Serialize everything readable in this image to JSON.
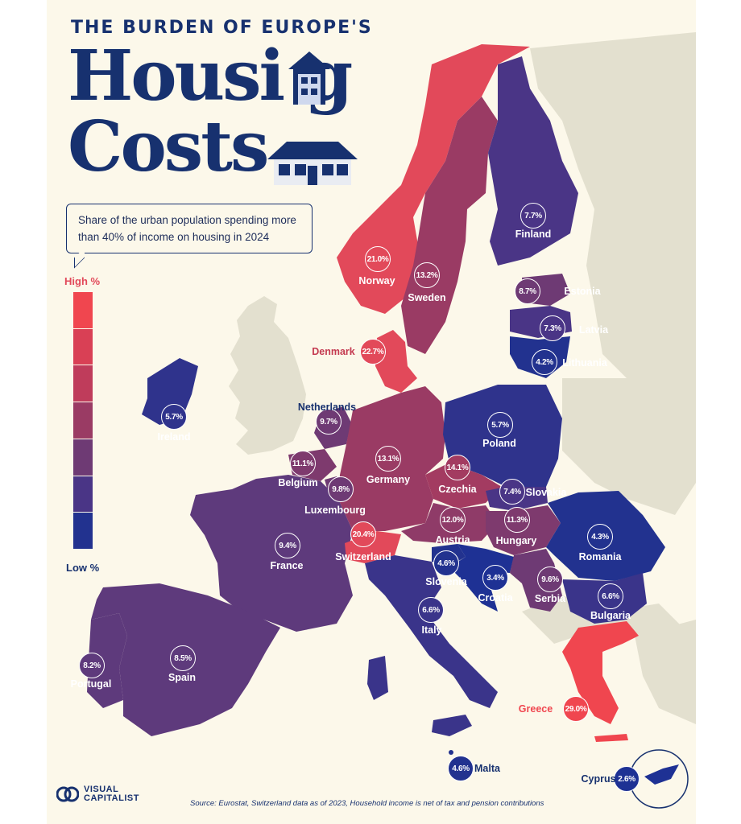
{
  "header": {
    "subtitle": "THE BURDEN OF EUROPE'S",
    "title_line1": "Housi  g",
    "title_line2": "Costs"
  },
  "description": "Share of the urban population spending more than 40% of income on housing in 2024",
  "legend": {
    "high_label": "High %",
    "low_label": "Low %",
    "colors": [
      "#f0464f",
      "#d94055",
      "#bf3c5b",
      "#9a3b64",
      "#6e3a74",
      "#4a3586",
      "#22328f"
    ]
  },
  "countries": [
    {
      "name": "Norway",
      "value": "21.0%",
      "color": "#e2495a",
      "label": "Norway"
    },
    {
      "name": "Sweden",
      "value": "13.2%",
      "color": "#9a3b64",
      "label": "Sweden"
    },
    {
      "name": "Finland",
      "value": "7.7%",
      "color": "#4a3586",
      "label": "Finland"
    },
    {
      "name": "Estonia",
      "value": "8.7%",
      "color": "#6e3a74",
      "label": "Estonia"
    },
    {
      "name": "Latvia",
      "value": "7.3%",
      "color": "#4a3586",
      "label": "Latvia"
    },
    {
      "name": "Lithuania",
      "value": "4.2%",
      "color": "#22328f",
      "label": "Lithuania"
    },
    {
      "name": "Denmark",
      "value": "22.7%",
      "color": "#e2495a",
      "label": "Denmark"
    },
    {
      "name": "Ireland",
      "value": "5.7%",
      "color": "#2f338c",
      "label": "Ireland"
    },
    {
      "name": "Netherlands",
      "value": "9.7%",
      "color": "#6e3a74",
      "label": "Netherlands"
    },
    {
      "name": "Belgium",
      "value": "11.1%",
      "color": "#7e3a6e",
      "label": "Belgium"
    },
    {
      "name": "Luxembourg",
      "value": "9.8%",
      "color": "#6e3a74",
      "label": "Luxembourg"
    },
    {
      "name": "Germany",
      "value": "13.1%",
      "color": "#9a3b64",
      "label": "Germany"
    },
    {
      "name": "Poland",
      "value": "5.7%",
      "color": "#2f338c",
      "label": "Poland"
    },
    {
      "name": "Czechia",
      "value": "14.1%",
      "color": "#a33b61",
      "label": "Czechia"
    },
    {
      "name": "Slovakia",
      "value": "7.4%",
      "color": "#4a3586",
      "label": "Slovakia"
    },
    {
      "name": "Austria",
      "value": "12.0%",
      "color": "#8f3b68",
      "label": "Austria"
    },
    {
      "name": "Hungary",
      "value": "11.3%",
      "color": "#7e3a6e",
      "label": "Hungary"
    },
    {
      "name": "Romania",
      "value": "4.3%",
      "color": "#22328f",
      "label": "Romania"
    },
    {
      "name": "France",
      "value": "9.4%",
      "color": "#5e3a7c",
      "label": "France"
    },
    {
      "name": "Switzerland",
      "value": "20.4%",
      "color": "#e2495a",
      "label": "Switzerland"
    },
    {
      "name": "Slovenia",
      "value": "4.6%",
      "color": "#22328f",
      "label": "Slovenia"
    },
    {
      "name": "Croatia",
      "value": "3.4%",
      "color": "#1e3194",
      "label": "Croatia"
    },
    {
      "name": "Serbia",
      "value": "9.6%",
      "color": "#6e3a74",
      "label": "Serbia"
    },
    {
      "name": "Bulgaria",
      "value": "6.6%",
      "color": "#3a348a",
      "label": "Bulgaria"
    },
    {
      "name": "Italy",
      "value": "6.6%",
      "color": "#3a348a",
      "label": "Italy"
    },
    {
      "name": "Portugal",
      "value": "8.2%",
      "color": "#5e3a7c",
      "label": "Portugal"
    },
    {
      "name": "Spain",
      "value": "8.5%",
      "color": "#5e3a7c",
      "label": "Spain"
    },
    {
      "name": "Greece",
      "value": "29.0%",
      "color": "#f0464f",
      "label": "Greece"
    },
    {
      "name": "Malta",
      "value": "4.6%",
      "color": "#22328f",
      "label": "Malta"
    },
    {
      "name": "Cyprus",
      "value": "2.6%",
      "color": "#1e3194",
      "label": "Cyprus"
    }
  ],
  "footer": {
    "logo_line1": "VISUAL",
    "logo_line2": "CAPITALIST",
    "source": "Source: Eurostat, Switzerland data as of 2023, Household income is net of tax and pension contributions"
  }
}
